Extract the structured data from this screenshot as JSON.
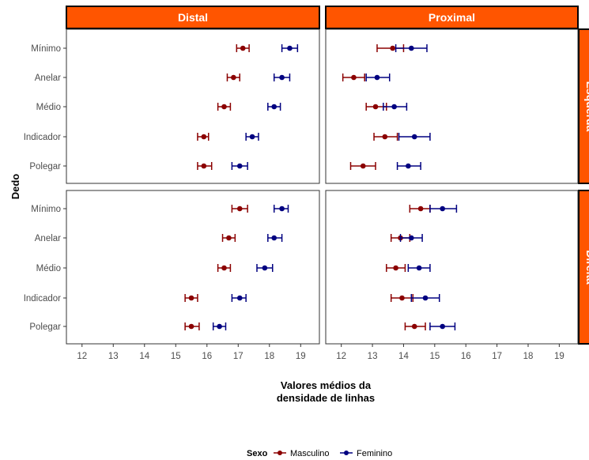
{
  "chart_data": {
    "type": "errorbar-dot",
    "facet_columns": [
      "Distal",
      "Proximal"
    ],
    "facet_rows": [
      "Esquerda",
      "Direita"
    ],
    "categories": [
      "Mínimo",
      "Anelar",
      "Médio",
      "Indicador",
      "Polegar"
    ],
    "xlim": [
      11.5,
      19.6
    ],
    "xticks": [
      12,
      13,
      14,
      15,
      16,
      17,
      18,
      19
    ],
    "xlabel": "Valores médios da densidade de linhas",
    "ylabel": "Dedo",
    "legend": {
      "title": "Sexo",
      "position": "bottom",
      "entries": [
        {
          "name": "Masculino",
          "color": "#8b0000"
        },
        {
          "name": "Feminino",
          "color": "#000080"
        }
      ]
    },
    "strip_color": "#ff5500",
    "panels": [
      {
        "col": "Distal",
        "row": "Esquerda",
        "series": [
          {
            "name": "Masculino",
            "mean": [
              17.15,
              16.85,
              16.55,
              15.9,
              15.9
            ],
            "low": [
              16.95,
              16.65,
              16.35,
              15.7,
              15.7
            ],
            "high": [
              17.35,
              17.05,
              16.75,
              16.05,
              16.15
            ]
          },
          {
            "name": "Feminino",
            "mean": [
              18.65,
              18.4,
              18.15,
              17.45,
              17.05
            ],
            "low": [
              18.4,
              18.15,
              17.95,
              17.25,
              16.8
            ],
            "high": [
              18.9,
              18.65,
              18.35,
              17.65,
              17.3
            ]
          }
        ]
      },
      {
        "col": "Proximal",
        "row": "Esquerda",
        "series": [
          {
            "name": "Masculino",
            "mean": [
              13.65,
              12.4,
              13.1,
              13.4,
              12.7
            ],
            "low": [
              13.15,
              12.05,
              12.8,
              13.05,
              12.3
            ],
            "high": [
              14.0,
              12.75,
              13.45,
              13.8,
              13.1
            ]
          },
          {
            "name": "Feminino",
            "mean": [
              14.25,
              13.15,
              13.7,
              14.35,
              14.15
            ],
            "low": [
              13.75,
              12.8,
              13.35,
              13.85,
              13.8
            ],
            "high": [
              14.75,
              13.55,
              14.1,
              14.85,
              14.55
            ]
          }
        ]
      },
      {
        "col": "Distal",
        "row": "Direita",
        "series": [
          {
            "name": "Masculino",
            "mean": [
              17.05,
              16.7,
              16.55,
              15.5,
              15.5
            ],
            "low": [
              16.8,
              16.5,
              16.35,
              15.3,
              15.3
            ],
            "high": [
              17.3,
              16.9,
              16.75,
              15.7,
              15.75
            ]
          },
          {
            "name": "Feminino",
            "mean": [
              18.4,
              18.15,
              17.85,
              17.05,
              16.4
            ],
            "low": [
              18.15,
              17.95,
              17.6,
              16.8,
              16.2
            ],
            "high": [
              18.6,
              18.4,
              18.1,
              17.25,
              16.6
            ]
          }
        ]
      },
      {
        "col": "Proximal",
        "row": "Direita",
        "series": [
          {
            "name": "Masculino",
            "mean": [
              14.55,
              13.9,
              13.75,
              13.95,
              14.35
            ],
            "low": [
              14.2,
              13.6,
              13.45,
              13.6,
              14.05
            ],
            "high": [
              14.85,
              14.2,
              14.05,
              14.3,
              14.7
            ]
          },
          {
            "name": "Feminino",
            "mean": [
              15.25,
              14.25,
              14.5,
              14.7,
              15.25
            ],
            "low": [
              14.85,
              13.9,
              14.15,
              14.25,
              14.85
            ],
            "high": [
              15.7,
              14.6,
              14.85,
              15.15,
              15.65
            ]
          }
        ]
      }
    ]
  }
}
